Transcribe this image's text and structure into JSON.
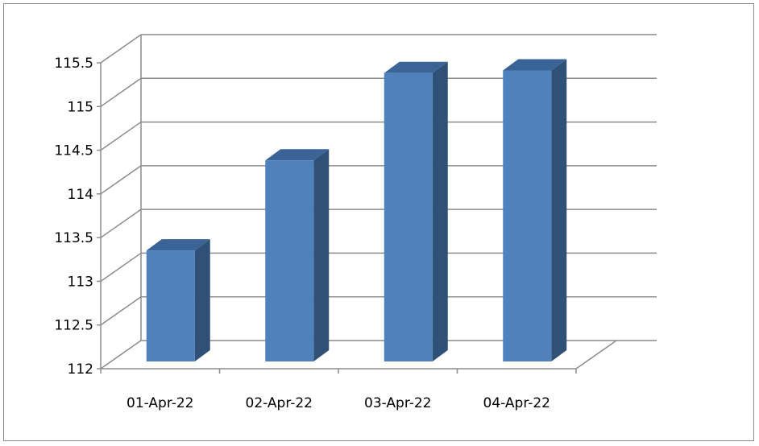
{
  "chart_data": {
    "type": "bar",
    "style": "3d-column",
    "title": "",
    "xlabel": "",
    "ylabel": "",
    "categories": [
      "01-Apr-22",
      "02-Apr-22",
      "03-Apr-22",
      "04-Apr-22"
    ],
    "values": [
      113.27,
      114.3,
      115.3,
      115.33
    ],
    "ylim": [
      112,
      115.5
    ],
    "yticks": [
      "112",
      "112.5",
      "113",
      "113.5",
      "114",
      "114.5",
      "115",
      "115.5"
    ],
    "grid": true,
    "legend": "none",
    "colors": {
      "front": "#4f81bd",
      "top": "#3a6396",
      "side": "#2f5077",
      "grid": "#8c8c8c"
    }
  }
}
